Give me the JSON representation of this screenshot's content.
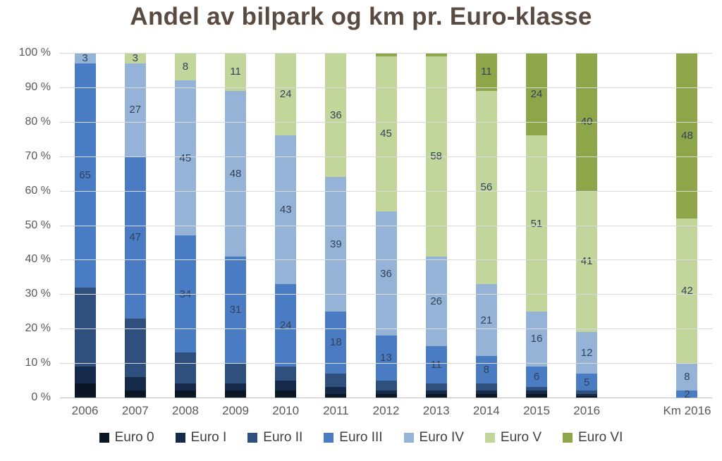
{
  "title": "Andel av bilpark og km pr. Euro-klasse",
  "chart_data": {
    "type": "bar",
    "stacked": true,
    "percent": true,
    "unit": "%",
    "title": "Andel av bilpark og km pr. Euro-klasse",
    "categories": [
      "2006",
      "2007",
      "2008",
      "2009",
      "2010",
      "2011",
      "2012",
      "2013",
      "2014",
      "2015",
      "2016",
      "",
      "Km 2016"
    ],
    "series": [
      {
        "name": "Euro 0",
        "color": "#0a1624",
        "values": [
          4,
          2,
          2,
          2,
          2,
          1,
          1,
          1,
          1,
          1,
          0.5,
          0,
          0
        ]
      },
      {
        "name": "Euro I",
        "color": "#15294b",
        "values": [
          5,
          4,
          2,
          2,
          3,
          2,
          1,
          1,
          1,
          1,
          0.5,
          0,
          0
        ]
      },
      {
        "name": "Euro II",
        "color": "#2f4f7d",
        "values": [
          23,
          17,
          9,
          6,
          4,
          4,
          3,
          2,
          2,
          1,
          1,
          0,
          0
        ]
      },
      {
        "name": "Euro III",
        "color": "#4a7cc4",
        "values": [
          65,
          47,
          34,
          31,
          24,
          18,
          13,
          11,
          8,
          6,
          5,
          0,
          2
        ]
      },
      {
        "name": "Euro IV",
        "color": "#95b3d7",
        "values": [
          3,
          27,
          45,
          48,
          43,
          39,
          36,
          26,
          21,
          16,
          12,
          0,
          8
        ]
      },
      {
        "name": "Euro V",
        "color": "#c2d69b",
        "values": [
          0,
          3,
          8,
          11,
          24,
          36,
          45,
          58,
          56,
          51,
          41,
          0,
          42
        ]
      },
      {
        "name": "Euro VI",
        "color": "#8ea54a",
        "values": [
          0,
          0,
          0,
          0,
          0,
          0,
          1,
          1,
          11,
          24,
          40,
          0,
          48
        ]
      }
    ],
    "segment_labels_shown_for": "Euro III, Euro IV, Euro V, Euro VI segments with value >= 2",
    "ylim": [
      0,
      100
    ],
    "y_ticks": [
      "0 %",
      "10 %",
      "20 %",
      "30 %",
      "40 %",
      "50 %",
      "60 %",
      "70 %",
      "80 %",
      "90 %",
      "100 %"
    ],
    "grid": true,
    "legend_position": "bottom",
    "legend": [
      "Euro 0",
      "Euro I",
      "Euro II",
      "Euro III",
      "Euro IV",
      "Euro V",
      "Euro VI"
    ],
    "colors": {
      "title_text": "#594a42",
      "axis_text": "#595959",
      "segment_label_text": "#32415a",
      "gridline": "#d9d9d9",
      "legend_text": "#3f3f3f",
      "background": "#ffffff"
    }
  }
}
